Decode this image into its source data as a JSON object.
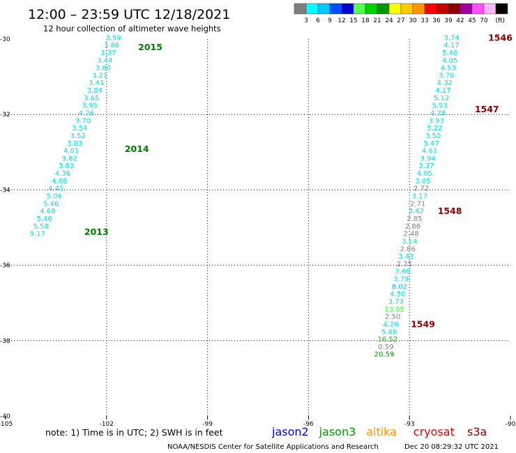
{
  "title": "12:00 – 23:59 UTC 12/18/2021",
  "subtitle": "12 hour collection of altimeter wave heights",
  "colorbar": {
    "unit": "(ft)",
    "entries": [
      {
        "label": "",
        "color": "#7f7f7f"
      },
      {
        "label": "3",
        "color": "#00ffff"
      },
      {
        "label": "6",
        "color": "#00c8ff"
      },
      {
        "label": "9",
        "color": "#0050ff"
      },
      {
        "label": "12",
        "color": "#0000cd"
      },
      {
        "label": "15",
        "color": "#50ff50"
      },
      {
        "label": "18",
        "color": "#00d200"
      },
      {
        "label": "21",
        "color": "#009600"
      },
      {
        "label": "24",
        "color": "#ffff00"
      },
      {
        "label": "27",
        "color": "#ffc800"
      },
      {
        "label": "30",
        "color": "#ff9600"
      },
      {
        "label": "33",
        "color": "#ff0000"
      },
      {
        "label": "36",
        "color": "#c80000"
      },
      {
        "label": "39",
        "color": "#8b0000"
      },
      {
        "label": "42",
        "color": "#a000a0"
      },
      {
        "label": "45",
        "color": "#ff50ff"
      },
      {
        "label": "70",
        "color": "#ffb4ff"
      },
      {
        "label": "",
        "color": "#000000"
      }
    ]
  },
  "chart_data": {
    "type": "scatter",
    "xlim": [
      -105,
      -90
    ],
    "ylim": [
      -40,
      -30
    ],
    "xticks": [
      "-105",
      "-102",
      "-99",
      "-96",
      "-93",
      "-90"
    ],
    "yticks": [
      "-30",
      "-32",
      "-34",
      "-36",
      "-38",
      "-40"
    ],
    "grid": true,
    "series": [
      {
        "points": [
          {
            "lon": -101.8,
            "lat": -29.95,
            "v": "3.59",
            "c": "#00e0e0"
          },
          {
            "lon": -101.85,
            "lat": -30.15,
            "v": "3.86",
            "c": "#00e0e0"
          },
          {
            "lon": -101.95,
            "lat": -30.35,
            "v": "3.37",
            "c": "#00e0e0"
          },
          {
            "lon": -102.05,
            "lat": -30.55,
            "v": "3.44",
            "c": "#00e0e0"
          },
          {
            "lon": -102.1,
            "lat": -30.75,
            "v": "3.60",
            "c": "#00e0e0"
          },
          {
            "lon": -102.2,
            "lat": -30.95,
            "v": "3.21",
            "c": "#00e0e0"
          },
          {
            "lon": -102.3,
            "lat": -31.15,
            "v": "3.41",
            "c": "#00e0e0"
          },
          {
            "lon": -102.35,
            "lat": -31.35,
            "v": "3.84",
            "c": "#00e0e0"
          },
          {
            "lon": -102.45,
            "lat": -31.55,
            "v": "3.65",
            "c": "#00e0e0"
          },
          {
            "lon": -102.5,
            "lat": -31.75,
            "v": "3.95",
            "c": "#00e0e0"
          },
          {
            "lon": -102.6,
            "lat": -31.95,
            "v": "4.26",
            "c": "#00e0e0"
          },
          {
            "lon": -102.7,
            "lat": -32.15,
            "v": "3.70",
            "c": "#00e0e0"
          },
          {
            "lon": -102.8,
            "lat": -32.35,
            "v": "3.54",
            "c": "#00e0e0"
          },
          {
            "lon": -102.85,
            "lat": -32.55,
            "v": "3.52",
            "c": "#00e0e0"
          },
          {
            "lon": -102.95,
            "lat": -32.75,
            "v": "3.83",
            "c": "#00e0e0"
          },
          {
            "lon": -103.05,
            "lat": -32.95,
            "v": "4.01",
            "c": "#00e0e0"
          },
          {
            "lon": -103.1,
            "lat": -33.15,
            "v": "3.82",
            "c": "#00e0e0"
          },
          {
            "lon": -103.2,
            "lat": -33.35,
            "v": "3.83",
            "c": "#00e0e0"
          },
          {
            "lon": -103.3,
            "lat": -33.55,
            "v": "4.36",
            "c": "#00e0e0"
          },
          {
            "lon": -103.4,
            "lat": -33.75,
            "v": "4.68",
            "c": "#00e0e0"
          },
          {
            "lon": -103.5,
            "lat": -33.95,
            "v": "4.45",
            "c": "#00e0e0"
          },
          {
            "lon": -103.55,
            "lat": -34.15,
            "v": "5.06",
            "c": "#00e0e0"
          },
          {
            "lon": -103.65,
            "lat": -34.35,
            "v": "5.46",
            "c": "#00e0e0"
          },
          {
            "lon": -103.75,
            "lat": -34.55,
            "v": "4.69",
            "c": "#00e0e0"
          },
          {
            "lon": -103.85,
            "lat": -34.75,
            "v": "5.46",
            "c": "#00e0e0"
          },
          {
            "lon": -103.95,
            "lat": -34.95,
            "v": "5.58",
            "c": "#00e0e0"
          },
          {
            "lon": -104.05,
            "lat": -35.15,
            "v": "5.17",
            "c": "#00e0e0"
          },
          {
            "lon": -91.75,
            "lat": -29.95,
            "v": "3.74",
            "c": "#00e0e0"
          },
          {
            "lon": -91.75,
            "lat": -30.15,
            "v": "4.17",
            "c": "#00e0e0"
          },
          {
            "lon": -91.8,
            "lat": -30.35,
            "v": "5.46",
            "c": "#00e0e0"
          },
          {
            "lon": -91.8,
            "lat": -30.55,
            "v": "4.05",
            "c": "#00e0e0"
          },
          {
            "lon": -91.85,
            "lat": -30.75,
            "v": "4.53",
            "c": "#00e0e0"
          },
          {
            "lon": -91.9,
            "lat": -30.95,
            "v": "3.70",
            "c": "#00e0e0"
          },
          {
            "lon": -91.95,
            "lat": -31.15,
            "v": "4.32",
            "c": "#00e0e0"
          },
          {
            "lon": -92.0,
            "lat": -31.35,
            "v": "4.17",
            "c": "#00e0e0"
          },
          {
            "lon": -92.05,
            "lat": -31.55,
            "v": "5.12",
            "c": "#00e0e0"
          },
          {
            "lon": -92.1,
            "lat": -31.75,
            "v": "5.53",
            "c": "#00e0e0"
          },
          {
            "lon": -92.15,
            "lat": -31.95,
            "v": "4.28",
            "c": "#00e0e0"
          },
          {
            "lon": -92.2,
            "lat": -32.15,
            "v": "3.93",
            "c": "#00e0e0"
          },
          {
            "lon": -92.25,
            "lat": -32.35,
            "v": "5.22",
            "c": "#00e0e0"
          },
          {
            "lon": -92.3,
            "lat": -32.55,
            "v": "3.50",
            "c": "#00e0e0"
          },
          {
            "lon": -92.35,
            "lat": -32.75,
            "v": "5.47",
            "c": "#00e0e0"
          },
          {
            "lon": -92.4,
            "lat": -32.95,
            "v": "4.61",
            "c": "#00e0e0"
          },
          {
            "lon": -92.45,
            "lat": -33.15,
            "v": "3.94",
            "c": "#00e0e0"
          },
          {
            "lon": -92.5,
            "lat": -33.35,
            "v": "3.37",
            "c": "#00e0e0"
          },
          {
            "lon": -92.55,
            "lat": -33.55,
            "v": "4.05",
            "c": "#00e0e0"
          },
          {
            "lon": -92.6,
            "lat": -33.75,
            "v": "3.05",
            "c": "#00e0e0"
          },
          {
            "lon": -92.65,
            "lat": -33.95,
            "v": "2.72",
            "c": "#7f7f7f"
          },
          {
            "lon": -92.7,
            "lat": -34.15,
            "v": "3.17",
            "c": "#00e0e0"
          },
          {
            "lon": -92.75,
            "lat": -34.35,
            "v": "2.71",
            "c": "#7f7f7f"
          },
          {
            "lon": -92.8,
            "lat": -34.55,
            "v": "3.42",
            "c": "#00e0e0"
          },
          {
            "lon": -92.85,
            "lat": -34.75,
            "v": "2.85",
            "c": "#7f7f7f"
          },
          {
            "lon": -92.9,
            "lat": -34.95,
            "v": "2.86",
            "c": "#7f7f7f"
          },
          {
            "lon": -92.95,
            "lat": -35.15,
            "v": "2.48",
            "c": "#7f7f7f"
          },
          {
            "lon": -93.0,
            "lat": -35.35,
            "v": "3.14",
            "c": "#00e0e0"
          },
          {
            "lon": -93.05,
            "lat": -35.55,
            "v": "2.86",
            "c": "#7f7f7f"
          },
          {
            "lon": -93.1,
            "lat": -35.75,
            "v": "3.43",
            "c": "#00e0e0"
          },
          {
            "lon": -93.15,
            "lat": -35.95,
            "v": "2.25",
            "c": "#7f7f7f"
          },
          {
            "lon": -93.2,
            "lat": -36.15,
            "v": "3.66",
            "c": "#00e0e0"
          },
          {
            "lon": -93.25,
            "lat": -36.35,
            "v": "3.79",
            "c": "#00e0e0"
          },
          {
            "lon": -93.3,
            "lat": -36.55,
            "v": "8.02",
            "c": "#00c8ff"
          },
          {
            "lon": -93.35,
            "lat": -36.75,
            "v": "4.50",
            "c": "#00e0e0"
          },
          {
            "lon": -93.4,
            "lat": -36.95,
            "v": "3.73",
            "c": "#00e0e0"
          },
          {
            "lon": -93.45,
            "lat": -37.15,
            "v": "13.95",
            "c": "#50ff50"
          },
          {
            "lon": -93.5,
            "lat": -37.35,
            "v": "2.50",
            "c": "#7f7f7f"
          },
          {
            "lon": -93.55,
            "lat": -37.55,
            "v": "4.26",
            "c": "#00e0e0"
          },
          {
            "lon": -93.6,
            "lat": -37.75,
            "v": "5.88",
            "c": "#00e0e0"
          },
          {
            "lon": -93.65,
            "lat": -37.95,
            "v": "16.52",
            "c": "#00c800"
          },
          {
            "lon": -93.7,
            "lat": -38.15,
            "v": "0.59",
            "c": "#7f7f7f"
          },
          {
            "lon": -93.75,
            "lat": -38.35,
            "v": "20.59",
            "c": "#009600"
          }
        ]
      }
    ],
    "orbit_labels": [
      {
        "text": "2015",
        "lon": -100.7,
        "lat": -30.2,
        "color": "#007a00"
      },
      {
        "text": "2014",
        "lon": -101.1,
        "lat": -32.9,
        "color": "#007a00"
      },
      {
        "text": "2013",
        "lon": -102.3,
        "lat": -35.1,
        "color": "#007a00"
      },
      {
        "text": "1546",
        "lon": -90.3,
        "lat": -29.95,
        "color": "#8b0000"
      },
      {
        "text": "1547",
        "lon": -90.7,
        "lat": -31.85,
        "color": "#8b0000"
      },
      {
        "text": "1548",
        "lon": -91.8,
        "lat": -34.55,
        "color": "#8b0000"
      },
      {
        "text": "1549",
        "lon": -92.6,
        "lat": -37.55,
        "color": "#8b0000"
      }
    ]
  },
  "footer": {
    "note": "note: 1) Time is in UTC; 2) SWH is in feet",
    "satellites": [
      {
        "name": "jason2",
        "color": "#0000ee"
      },
      {
        "name": "jason3",
        "color": "#009600"
      },
      {
        "name": "altika",
        "color": "#ff9600"
      },
      {
        "name": "cryosat",
        "color": "#ee0000"
      },
      {
        "name": "s3a",
        "color": "#8b0000"
      }
    ],
    "credit": "NOAA/NESDIS Center for Satellite Applications and Research",
    "timestamp": "Dec 20 08:29:32 UTC 2021"
  }
}
